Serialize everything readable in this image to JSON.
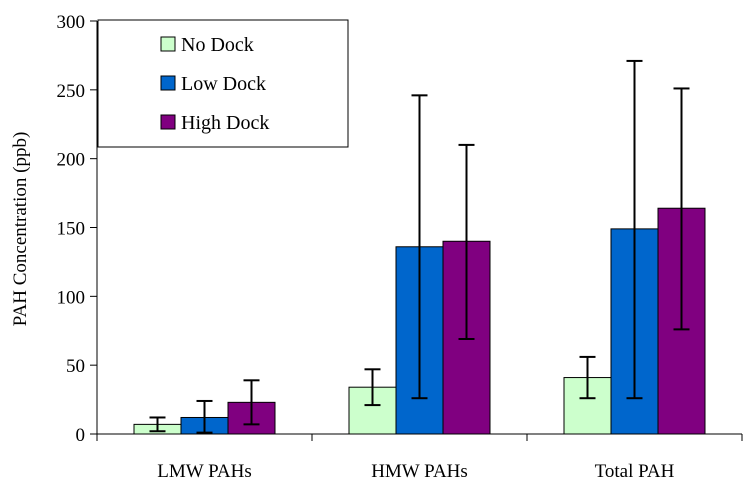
{
  "chart_data": {
    "type": "bar",
    "title": "",
    "xlabel": "",
    "ylabel": "PAH Concentration (ppb)",
    "ylim": [
      0,
      300
    ],
    "yticks": [
      0,
      50,
      100,
      150,
      200,
      250,
      300
    ],
    "grid": false,
    "legend_position": "top-left",
    "categories": [
      "LMW PAHs",
      "HMW PAHs",
      "Total PAH"
    ],
    "series": [
      {
        "name": "No Dock",
        "color": "#ccffcc",
        "values": [
          7,
          34,
          41
        ],
        "error_low": [
          2,
          21,
          26
        ],
        "error_high": [
          12,
          47,
          56
        ]
      },
      {
        "name": "Low Dock",
        "color": "#0066cc",
        "values": [
          12,
          136,
          149
        ],
        "error_low": [
          1,
          26,
          26
        ],
        "error_high": [
          24,
          246,
          271
        ]
      },
      {
        "name": "High Dock",
        "color": "#800080",
        "values": [
          23,
          140,
          164
        ],
        "error_low": [
          7,
          69,
          76
        ],
        "error_high": [
          39,
          210,
          251
        ]
      }
    ]
  }
}
